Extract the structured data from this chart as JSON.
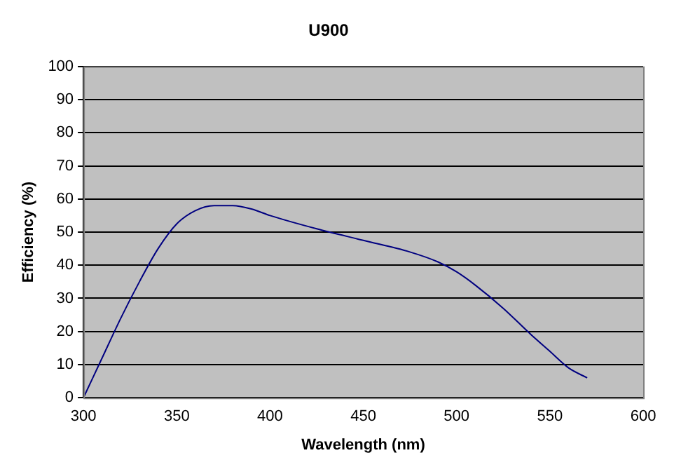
{
  "chart_data": {
    "type": "line",
    "title": "U900",
    "xlabel": "Wavelength (nm)",
    "ylabel": "Efficiency (%)",
    "x": [
      300,
      305,
      310,
      320,
      330,
      340,
      350,
      360,
      370,
      375,
      380,
      390,
      400,
      425,
      450,
      475,
      490,
      500,
      510,
      525,
      540,
      550,
      560,
      570
    ],
    "series": [
      {
        "color": "#000080",
        "values": [
          0,
          6,
          12,
          24,
          35,
          45,
          52.5,
          56.5,
          58,
          58,
          58,
          57,
          55,
          51,
          47.5,
          44,
          41,
          38,
          34,
          27,
          19,
          14,
          9,
          6
        ]
      }
    ],
    "xlim": [
      300,
      600
    ],
    "xticks": [
      300,
      350,
      400,
      450,
      500,
      550,
      600
    ],
    "ylim": [
      0,
      100
    ],
    "yticks": [
      0,
      10,
      20,
      30,
      40,
      50,
      60,
      70,
      80,
      90,
      100
    ],
    "grid": "y",
    "legend": false,
    "marker": "none",
    "line_style": "solid"
  }
}
